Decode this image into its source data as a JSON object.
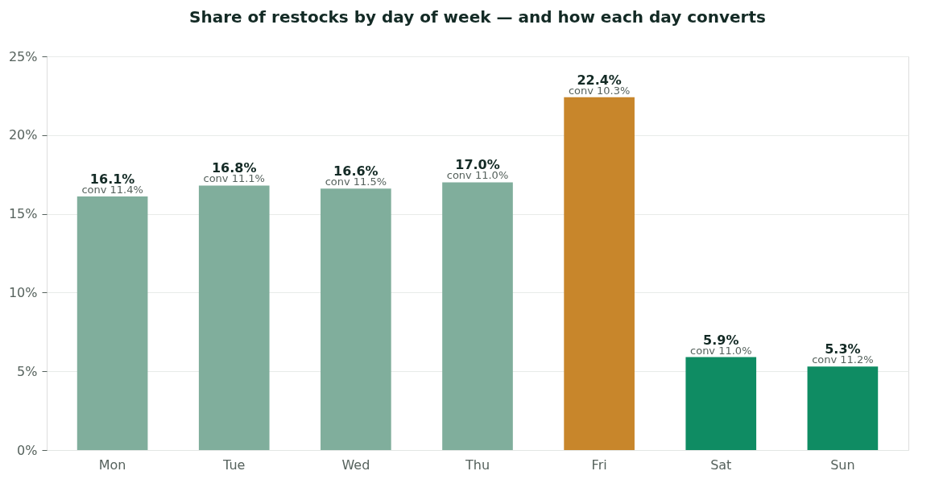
{
  "chart_data": {
    "type": "bar",
    "title": "Share of restocks by day of week — and how each day converts",
    "categories": [
      "Mon",
      "Tue",
      "Wed",
      "Thu",
      "Fri",
      "Sat",
      "Sun"
    ],
    "values": [
      16.1,
      16.8,
      16.6,
      17.0,
      22.4,
      5.9,
      5.3
    ],
    "value_labels": [
      "16.1%",
      "16.8%",
      "16.6%",
      "17.0%",
      "22.4%",
      "5.9%",
      "5.3%"
    ],
    "colors": [
      "#80ae9c",
      "#80ae9c",
      "#80ae9c",
      "#80ae9c",
      "#c8862b",
      "#0f8c63",
      "#0f8c63"
    ],
    "ylim": [
      0,
      25
    ],
    "yticks": [
      {
        "value": 0,
        "label": "0%"
      },
      {
        "value": 5,
        "label": "5%"
      },
      {
        "value": 10,
        "label": "10%"
      },
      {
        "value": 15,
        "label": "15%"
      },
      {
        "value": 20,
        "label": "20%"
      },
      {
        "value": 25,
        "label": "25%"
      }
    ],
    "grid": "y",
    "legend": false,
    "annotations": [
      {
        "text": "conv 11.4%",
        "x": "Mon",
        "y": 16.1
      },
      {
        "text": "conv 11.1%",
        "x": "Tue",
        "y": 16.8
      },
      {
        "text": "conv 11.5%",
        "x": "Wed",
        "y": 16.6
      },
      {
        "text": "conv 11.0%",
        "x": "Thu",
        "y": 17.0
      },
      {
        "text": "conv 10.3%",
        "x": "Fri",
        "y": 22.4
      },
      {
        "text": "conv 11.0%",
        "x": "Sat",
        "y": 5.9
      },
      {
        "text": "conv 11.2%",
        "x": "Sun",
        "y": 5.3
      }
    ]
  }
}
